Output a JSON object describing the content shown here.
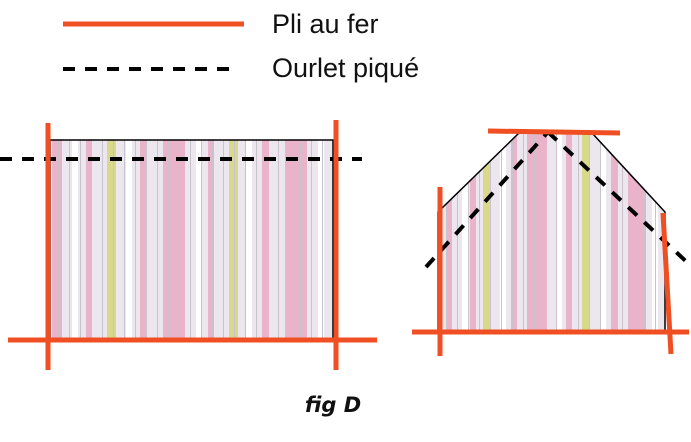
{
  "legend": {
    "items": [
      {
        "label": "Pli au fer",
        "line_style": "solid",
        "color": "#f04e23"
      },
      {
        "label": "Ourlet piqué",
        "line_style": "dashed",
        "color": "#000000"
      }
    ]
  },
  "caption": "fig D",
  "colors": {
    "fold_line": "#f04e23",
    "stitched_hem": "#000000",
    "fabric_base": "#ece6ee",
    "stripe_pink": "#e9b3c9",
    "stripe_yellow": "#d8d98a",
    "stripe_thin": "#c9c3cc",
    "outline": "#000000"
  },
  "pieces": [
    {
      "shape": "rectangle"
    },
    {
      "shape": "trapezoid"
    }
  ]
}
